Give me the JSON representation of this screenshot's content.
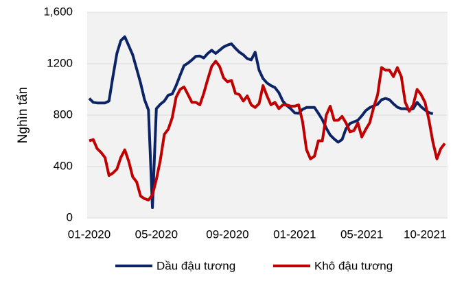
{
  "chart_data": {
    "type": "line",
    "y_label": "Nghìn tấn",
    "categories": [
      "01-2020",
      null,
      null,
      null,
      null,
      null,
      null,
      null,
      null,
      null,
      null,
      null,
      null,
      null,
      null,
      null,
      null,
      "05-2020",
      null,
      null,
      null,
      null,
      null,
      null,
      null,
      null,
      null,
      null,
      null,
      null,
      null,
      null,
      null,
      null,
      null,
      "09-2020",
      null,
      null,
      null,
      null,
      null,
      null,
      null,
      null,
      null,
      null,
      null,
      null,
      null,
      null,
      null,
      null,
      "01-2021",
      null,
      null,
      null,
      null,
      null,
      null,
      null,
      null,
      null,
      null,
      null,
      null,
      null,
      null,
      null,
      null,
      "05-2021",
      null,
      null,
      null,
      null,
      null,
      null,
      null,
      null,
      null,
      null,
      null,
      null,
      null,
      null,
      null,
      "10-2021",
      null,
      null,
      null,
      null,
      null
    ],
    "series": [
      {
        "name": "Dầu đậu tương",
        "color": "#0c2466",
        "values": [
          930,
          900,
          895,
          895,
          895,
          910,
          1100,
          1280,
          1380,
          1410,
          1340,
          1270,
          1160,
          1050,
          920,
          840,
          80,
          850,
          885,
          910,
          955,
          965,
          1030,
          1110,
          1185,
          1205,
          1230,
          1258,
          1260,
          1245,
          1280,
          1305,
          1280,
          1305,
          1330,
          1345,
          1355,
          1320,
          1290,
          1270,
          1240,
          1230,
          1290,
          1150,
          1085,
          1050,
          1030,
          1015,
          975,
          910,
          875,
          850,
          818,
          815,
          845,
          860,
          860,
          860,
          815,
          765,
          700,
          645,
          615,
          590,
          610,
          695,
          735,
          748,
          760,
          795,
          835,
          858,
          872,
          885,
          920,
          930,
          920,
          888,
          862,
          850,
          850,
          842,
          850,
          900,
          865,
          840,
          820,
          810,
          null,
          null,
          null
        ]
      },
      {
        "name": "Khô đậu tương",
        "color": "#c00000",
        "values": [
          600,
          610,
          540,
          510,
          470,
          330,
          350,
          380,
          470,
          530,
          440,
          320,
          280,
          170,
          150,
          140,
          180,
          300,
          450,
          650,
          690,
          780,
          940,
          1000,
          1020,
          960,
          900,
          900,
          880,
          970,
          1080,
          1180,
          1220,
          1180,
          1090,
          1060,
          1070,
          970,
          960,
          910,
          950,
          880,
          860,
          890,
          1030,
          950,
          880,
          900,
          850,
          880,
          880,
          870,
          870,
          880,
          750,
          530,
          460,
          480,
          600,
          600,
          800,
          870,
          760,
          760,
          790,
          740,
          670,
          680,
          740,
          630,
          690,
          740,
          860,
          960,
          1170,
          1150,
          1150,
          1100,
          1170,
          1100,
          900,
          830,
          880,
          1000,
          960,
          900,
          760,
          590,
          460,
          540,
          580
        ]
      }
    ],
    "ylim": [
      0,
      1600
    ],
    "yticks": [
      0,
      400,
      800,
      1200,
      {
        "value": 1600,
        "label": "1,600"
      }
    ],
    "grid": true,
    "legend": "bottom"
  }
}
